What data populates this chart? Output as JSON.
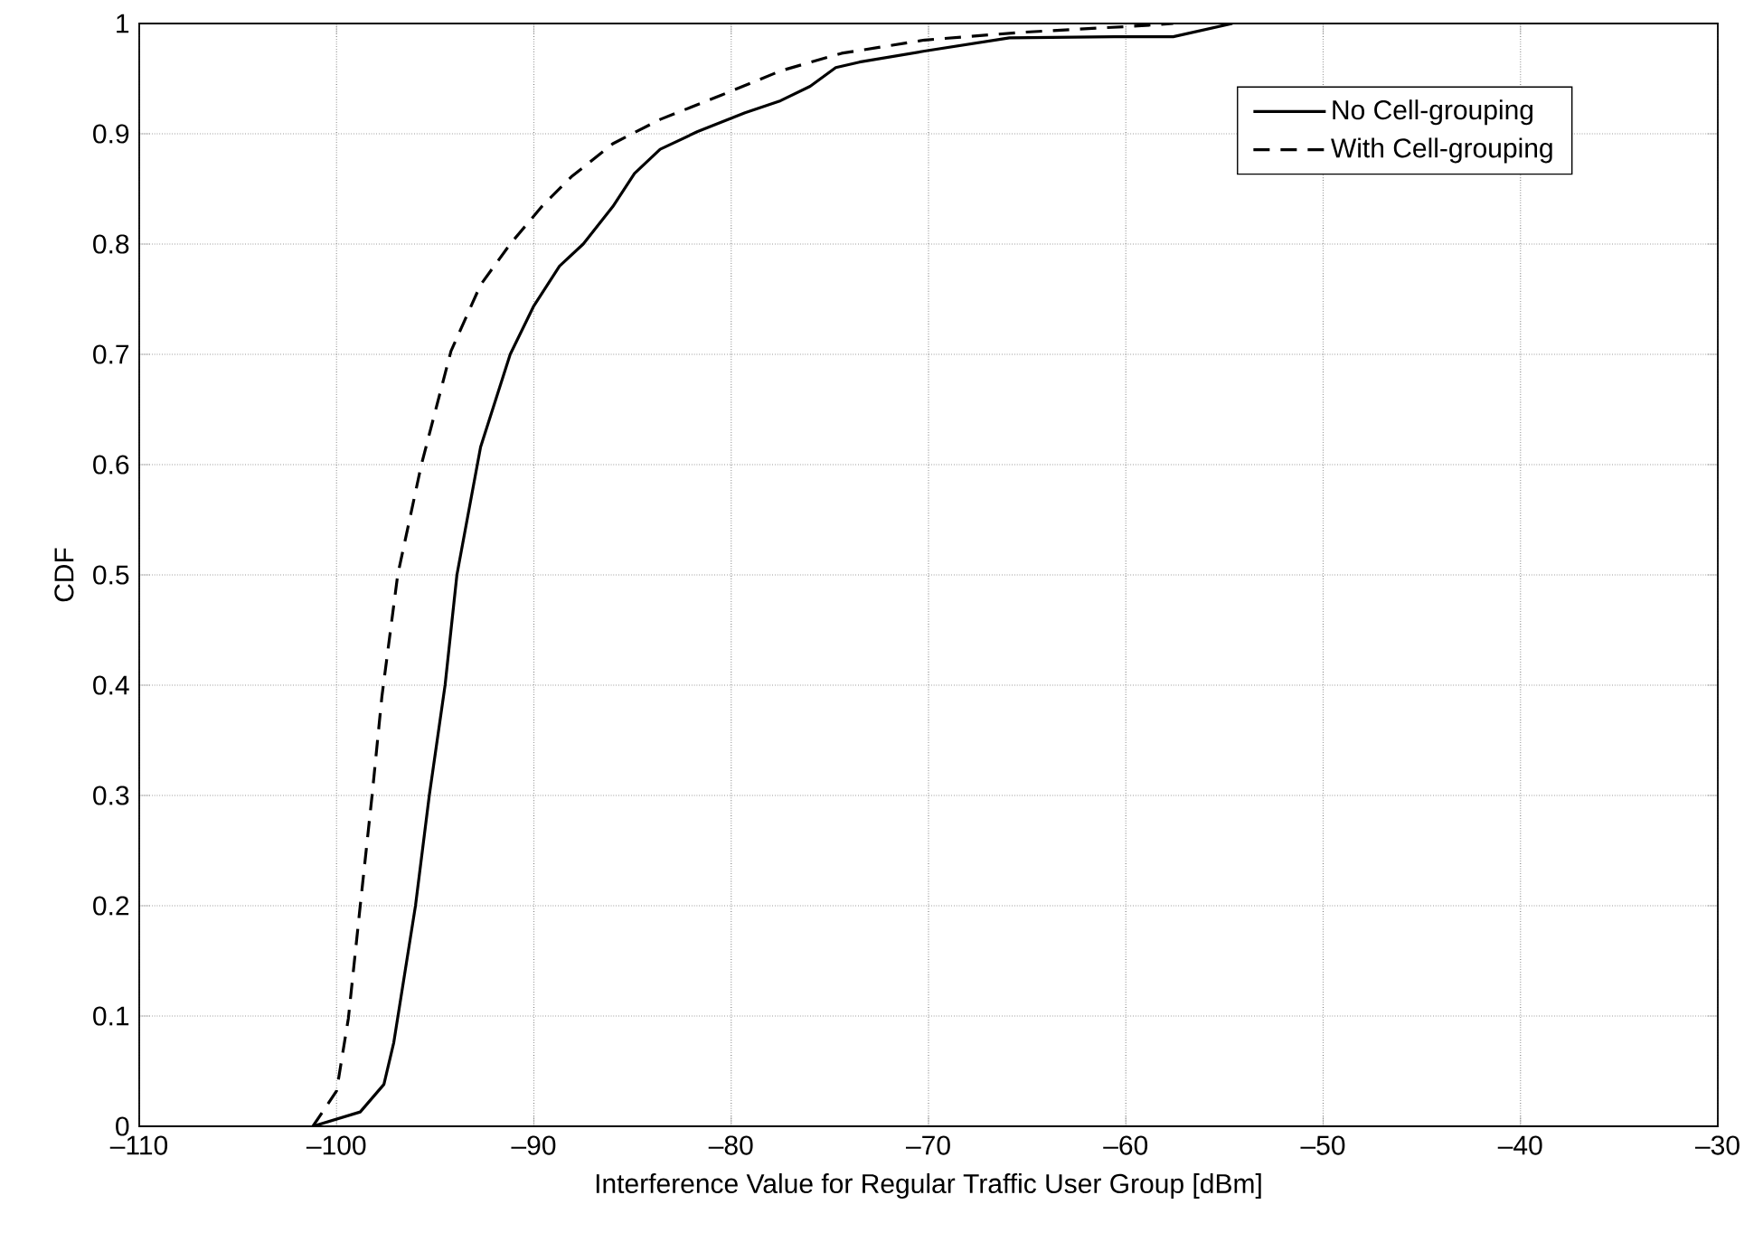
{
  "chart_data": {
    "type": "line",
    "xlabel": "Interference Value for Regular Traffic User Group [dBm]",
    "ylabel": "CDF",
    "xlim": [
      -110,
      -30
    ],
    "ylim": [
      0,
      1
    ],
    "xticks": [
      {
        "value": -110,
        "label": "–110"
      },
      {
        "value": -100,
        "label": "–100"
      },
      {
        "value": -90,
        "label": "–90"
      },
      {
        "value": -80,
        "label": "–80"
      },
      {
        "value": -70,
        "label": "–70"
      },
      {
        "value": -60,
        "label": "–60"
      },
      {
        "value": -50,
        "label": "–50"
      },
      {
        "value": -40,
        "label": "–40"
      },
      {
        "value": -30,
        "label": "–30"
      }
    ],
    "yticks": [
      0,
      0.1,
      0.2,
      0.3,
      0.4,
      0.5,
      0.6,
      0.7,
      0.8,
      0.9,
      1
    ],
    "grid": true,
    "legend": "top right",
    "marker": "none",
    "series": [
      {
        "name": "No Cell-grouping",
        "color": "#000000",
        "line_style": "solid",
        "x": [
          -101.2,
          -98.8,
          -97.6,
          -97.1,
          -96.0,
          -95.3,
          -94.5,
          -93.9,
          -92.7,
          -91.2,
          -90.0,
          -88.7,
          -87.5,
          -86.0,
          -84.9,
          -83.6,
          -81.7,
          -79.3,
          -77.5,
          -76.0,
          -74.7,
          -73.5,
          -70.2,
          -65.9,
          -60.6,
          -57.6,
          -54.6
        ],
        "values": [
          0,
          0.013,
          0.038,
          0.076,
          0.2,
          0.3,
          0.4,
          0.5,
          0.616,
          0.7,
          0.744,
          0.78,
          0.8,
          0.834,
          0.864,
          0.886,
          0.902,
          0.919,
          0.93,
          0.943,
          0.96,
          0.965,
          0.975,
          0.987,
          0.988,
          0.988,
          1
        ]
      },
      {
        "name": "With Cell-grouping",
        "color": "#000000",
        "line_style": "dashed",
        "x": [
          -101.2,
          -100.0,
          -99.4,
          -98.8,
          -98.2,
          -97.7,
          -96.9,
          -95.7,
          -94.2,
          -92.7,
          -91.2,
          -89.6,
          -88.1,
          -86.0,
          -83.6,
          -80.5,
          -77.5,
          -74.4,
          -70.2,
          -65.3,
          -59.2,
          -57.6
        ],
        "values": [
          0,
          0.032,
          0.098,
          0.2,
          0.3,
          0.39,
          0.5,
          0.6,
          0.703,
          0.763,
          0.8,
          0.834,
          0.861,
          0.891,
          0.913,
          0.935,
          0.957,
          0.973,
          0.985,
          0.992,
          0.998,
          1
        ]
      }
    ]
  }
}
